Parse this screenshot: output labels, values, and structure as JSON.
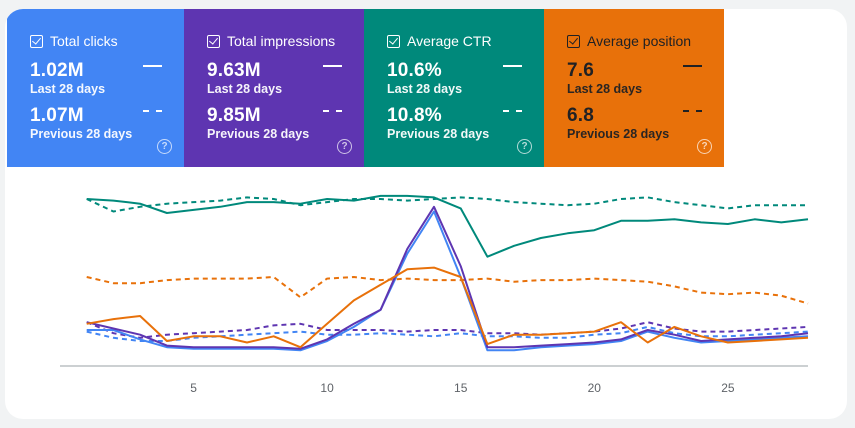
{
  "metrics": [
    {
      "label": "Total clicks",
      "current_value": "1.02M",
      "current_period": "Last 28 days",
      "previous_value": "1.07M",
      "previous_period": "Previous 28 days",
      "color": "#4285f4",
      "checked": true
    },
    {
      "label": "Total impressions",
      "current_value": "9.63M",
      "current_period": "Last 28 days",
      "previous_value": "9.85M",
      "previous_period": "Previous 28 days",
      "color": "#5e35b1",
      "checked": true
    },
    {
      "label": "Average CTR",
      "current_value": "10.6%",
      "current_period": "Last 28 days",
      "previous_value": "10.8%",
      "previous_period": "Previous 28 days",
      "color": "#00897b",
      "checked": true
    },
    {
      "label": "Average position",
      "current_value": "7.6",
      "current_period": "Last 28 days",
      "previous_value": "6.8",
      "previous_period": "Previous 28 days",
      "color": "#e8710a",
      "checked": true
    }
  ],
  "help_glyph": "?",
  "chart_data": {
    "type": "line",
    "x": [
      1,
      2,
      3,
      4,
      5,
      6,
      7,
      8,
      9,
      10,
      11,
      12,
      13,
      14,
      15,
      16,
      17,
      18,
      19,
      20,
      21,
      22,
      23,
      24,
      25,
      26,
      27,
      28
    ],
    "xlim": [
      0,
      28
    ],
    "x_tick_labels": [
      "5",
      "10",
      "15",
      "20",
      "25"
    ],
    "x_tick_values": [
      5,
      10,
      15,
      20,
      25
    ],
    "ylim": [
      0,
      100
    ],
    "series": [
      {
        "name": "Total clicks",
        "period": "Last 28 days",
        "style": "solid",
        "color": "#4285f4",
        "values": [
          16,
          16,
          10,
          5,
          4,
          4,
          4,
          4,
          3,
          9,
          18,
          29,
          65,
          92,
          50,
          3,
          3,
          5,
          6,
          7,
          9,
          15,
          11,
          8,
          9,
          10,
          11,
          12
        ]
      },
      {
        "name": "Total clicks",
        "period": "Previous 28 days",
        "style": "dashed",
        "color": "#4285f4",
        "values": [
          15,
          11,
          9,
          9,
          11,
          12,
          13,
          14,
          15,
          13,
          13,
          14,
          13,
          12,
          14,
          12,
          12,
          11,
          11,
          13,
          14,
          18,
          14,
          12,
          12,
          13,
          14,
          15
        ]
      },
      {
        "name": "Total impressions",
        "period": "Last 28 days",
        "style": "solid",
        "color": "#5e35b1",
        "values": [
          21,
          17,
          13,
          6,
          5,
          5,
          5,
          5,
          4,
          10,
          20,
          29,
          68,
          95,
          57,
          5,
          5,
          6,
          7,
          8,
          10,
          16,
          13,
          9,
          10,
          11,
          12,
          14
        ]
      },
      {
        "name": "Total impressions",
        "period": "Previous 28 days",
        "style": "dashed",
        "color": "#5e35b1",
        "values": [
          21,
          14,
          11,
          13,
          14,
          15,
          16,
          19,
          20,
          16,
          16,
          16,
          15,
          16,
          16,
          14,
          14,
          13,
          14,
          15,
          17,
          21,
          17,
          15,
          15,
          16,
          17,
          18
        ]
      },
      {
        "name": "Average CTR",
        "period": "Last 28 days",
        "style": "solid",
        "color": "#00897b",
        "values": [
          100,
          99,
          97,
          91,
          93,
          95,
          98,
          98,
          97,
          100,
          99,
          102,
          102,
          101,
          94,
          63,
          70,
          75,
          78,
          80,
          86,
          86,
          87,
          85,
          84,
          87,
          85,
          87
        ]
      },
      {
        "name": "Average CTR",
        "period": "Previous 28 days",
        "style": "dashed",
        "color": "#00897b",
        "values": [
          100,
          92,
          95,
          97,
          98,
          99,
          101,
          100,
          96,
          98,
          100,
          100,
          99,
          100,
          101,
          100,
          98,
          97,
          96,
          97,
          100,
          101,
          98,
          96,
          94,
          96,
          96,
          96
        ]
      },
      {
        "name": "Average position",
        "period": "Last 28 days",
        "style": "solid",
        "color": "#e8710a",
        "values": [
          20,
          23,
          25,
          9,
          12,
          12,
          8,
          12,
          5,
          20,
          35,
          45,
          55,
          56,
          50,
          7,
          13,
          13,
          14,
          15,
          21,
          8,
          18,
          12,
          8,
          9,
          10,
          11
        ]
      },
      {
        "name": "Average position",
        "period": "Previous 28 days",
        "style": "dashed",
        "color": "#e8710a",
        "values": [
          50,
          46,
          46,
          48,
          49,
          49,
          49,
          50,
          37,
          49,
          50,
          48,
          49,
          48,
          48,
          49,
          47,
          48,
          48,
          49,
          48,
          47,
          44,
          40,
          39,
          40,
          38,
          33
        ]
      }
    ]
  }
}
